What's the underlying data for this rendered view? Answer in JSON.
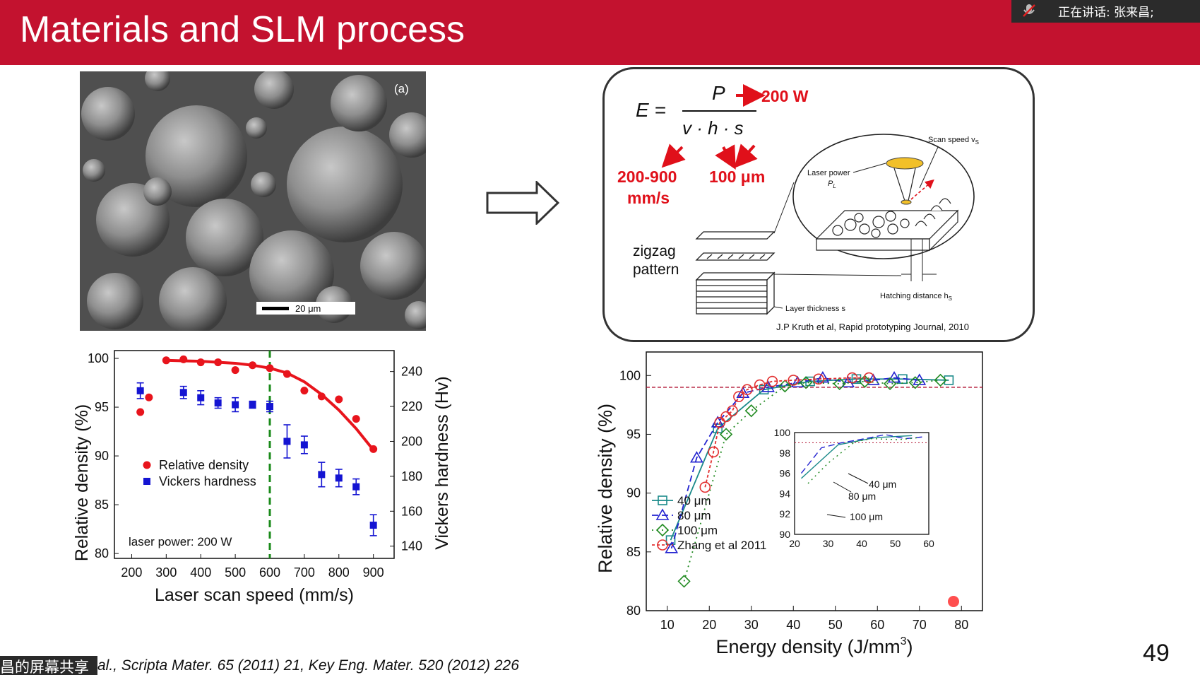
{
  "slide": {
    "title": "Materials and SLM process",
    "page_number": "49",
    "citation": "al., Scripta Mater. 65 (2011) 21, Key Eng. Mater.  520 (2012) 226"
  },
  "meeting": {
    "speaker_label": "正在讲话: 张来昌;",
    "share_label": "昌的屏幕共享",
    "mic_icon": "muted-mic-icon"
  },
  "sem_image": {
    "panel_label": "(a)",
    "scale_label": "20 μm"
  },
  "formula_box": {
    "lhs": "E =",
    "numerator": "P",
    "denominator": "v · h · s",
    "power_value": "200 W",
    "speed_value_line1": "200-900",
    "speed_value_line2": "mm/s",
    "hatch_value": "100 μm",
    "zigzag_line1": "zigzag",
    "zigzag_line2": "pattern",
    "scan_speed_label": "Scan speed v",
    "scan_speed_sub": "S",
    "laser_power_label": "Laser power",
    "laser_power_sym": "P",
    "laser_power_sub": "L",
    "hatch_label": "Hatching distance h",
    "hatch_sub": "S",
    "layer_label": "Layer thickness s",
    "reference": "J.P Kruth et al, Rapid prototyping Journal, 2010",
    "accent_color": "#e0101a"
  },
  "chart_data": [
    {
      "type": "scatter",
      "x_label": "Laser scan speed (mm/s)",
      "y_label_left": "Relative density (%)",
      "y_label_right": "Vickers hardness (Hv)",
      "x_ticks": [
        200,
        300,
        400,
        500,
        600,
        700,
        800,
        900
      ],
      "y_left_ticks": [
        80,
        85,
        90,
        95,
        100
      ],
      "y_right_ticks": [
        140,
        160,
        180,
        200,
        220,
        240
      ],
      "xlim": [
        150,
        960
      ],
      "ylim_left": [
        79.5,
        100.8
      ],
      "ylim_right": [
        133,
        252
      ],
      "annotation": "laser power: 200 W",
      "vline_x": 600,
      "legend": [
        "Relative density",
        "Vickers hardness"
      ],
      "series": [
        {
          "name": "Relative density",
          "color": "#e8141c",
          "x": [
            225,
            250,
            300,
            350,
            400,
            450,
            500,
            550,
            600,
            650,
            700,
            750,
            800,
            850,
            900
          ],
          "y": [
            94.5,
            96.0,
            99.8,
            99.9,
            99.6,
            99.6,
            98.8,
            99.3,
            99.0,
            98.4,
            96.7,
            96.1,
            95.8,
            93.8,
            90.7
          ]
        },
        {
          "name": "Vickers hardness",
          "color": "#1414d2",
          "x": [
            225,
            350,
            400,
            450,
            500,
            550,
            600,
            650,
            700,
            750,
            800,
            850,
            900
          ],
          "y": [
            229,
            228,
            225,
            222,
            221,
            221,
            220,
            200,
            198,
            181,
            179,
            174,
            152
          ],
          "err": [
            4.5,
            3.5,
            4.0,
            3.0,
            4.0,
            2.0,
            3.0,
            9.5,
            5.0,
            7.0,
            5.0,
            4.5,
            6.0
          ]
        }
      ],
      "fit_curve": {
        "color": "#e8141c",
        "x": [
          300,
          400,
          500,
          550,
          600,
          650,
          700,
          750,
          800,
          850,
          900
        ],
        "y": [
          99.8,
          99.7,
          99.5,
          99.3,
          99.0,
          98.5,
          97.6,
          96.3,
          94.7,
          92.8,
          90.6
        ]
      }
    },
    {
      "type": "line",
      "x_label": "Energy density (J/mm",
      "x_label_sup": "3",
      "x_label_end": ")",
      "y_label": "Relative density (%)",
      "x_ticks": [
        10,
        20,
        30,
        40,
        50,
        60,
        70,
        80
      ],
      "y_ticks": [
        80,
        85,
        90,
        95,
        100
      ],
      "xlim": [
        5,
        85
      ],
      "ylim": [
        80,
        102
      ],
      "ref_line_y": 99,
      "legend": [
        "40 μm",
        "80 μm",
        "100 μm",
        "Zhang et al 2011"
      ],
      "series": [
        {
          "name": "40 μm",
          "color": "#1a8a8a",
          "x": [
            10.8,
            22,
            33,
            44,
            55,
            66,
            77
          ],
          "y": [
            86.0,
            95.5,
            98.8,
            99.5,
            99.7,
            99.7,
            99.6
          ]
        },
        {
          "name": "80 μm",
          "color": "#2222d0",
          "x": [
            11,
            17,
            22,
            28,
            34,
            41,
            47,
            53,
            59,
            64,
            70
          ],
          "y": [
            85.3,
            93.0,
            96.0,
            98.5,
            99.0,
            99.4,
            99.8,
            99.4,
            99.6,
            99.8,
            99.6
          ]
        },
        {
          "name": "100 μm",
          "color": "#228b22",
          "x": [
            14,
            24,
            30,
            38,
            43,
            51,
            57,
            63,
            69,
            75
          ],
          "y": [
            82.5,
            95.0,
            97.0,
            99.1,
            99.4,
            99.3,
            99.5,
            99.3,
            99.4,
            99.6
          ]
        },
        {
          "name": "Zhang et al 2011",
          "color": "#e23030",
          "x": [
            19,
            21,
            22.5,
            24,
            25.5,
            27,
            29,
            32,
            35,
            40,
            46,
            54,
            58
          ],
          "y": [
            90.5,
            93.5,
            96.0,
            96.5,
            97.0,
            98.2,
            98.8,
            99.2,
            99.5,
            99.6,
            99.7,
            99.8,
            99.8
          ]
        }
      ],
      "inset": {
        "x_ticks": [
          20,
          30,
          40,
          50,
          60
        ],
        "y_ticks": [
          90,
          92,
          94,
          96,
          98,
          100
        ],
        "xlim": [
          20,
          60
        ],
        "ylim": [
          90,
          100
        ],
        "labels": [
          "40 μm",
          "80 μm",
          "100 μm"
        ]
      }
    }
  ]
}
